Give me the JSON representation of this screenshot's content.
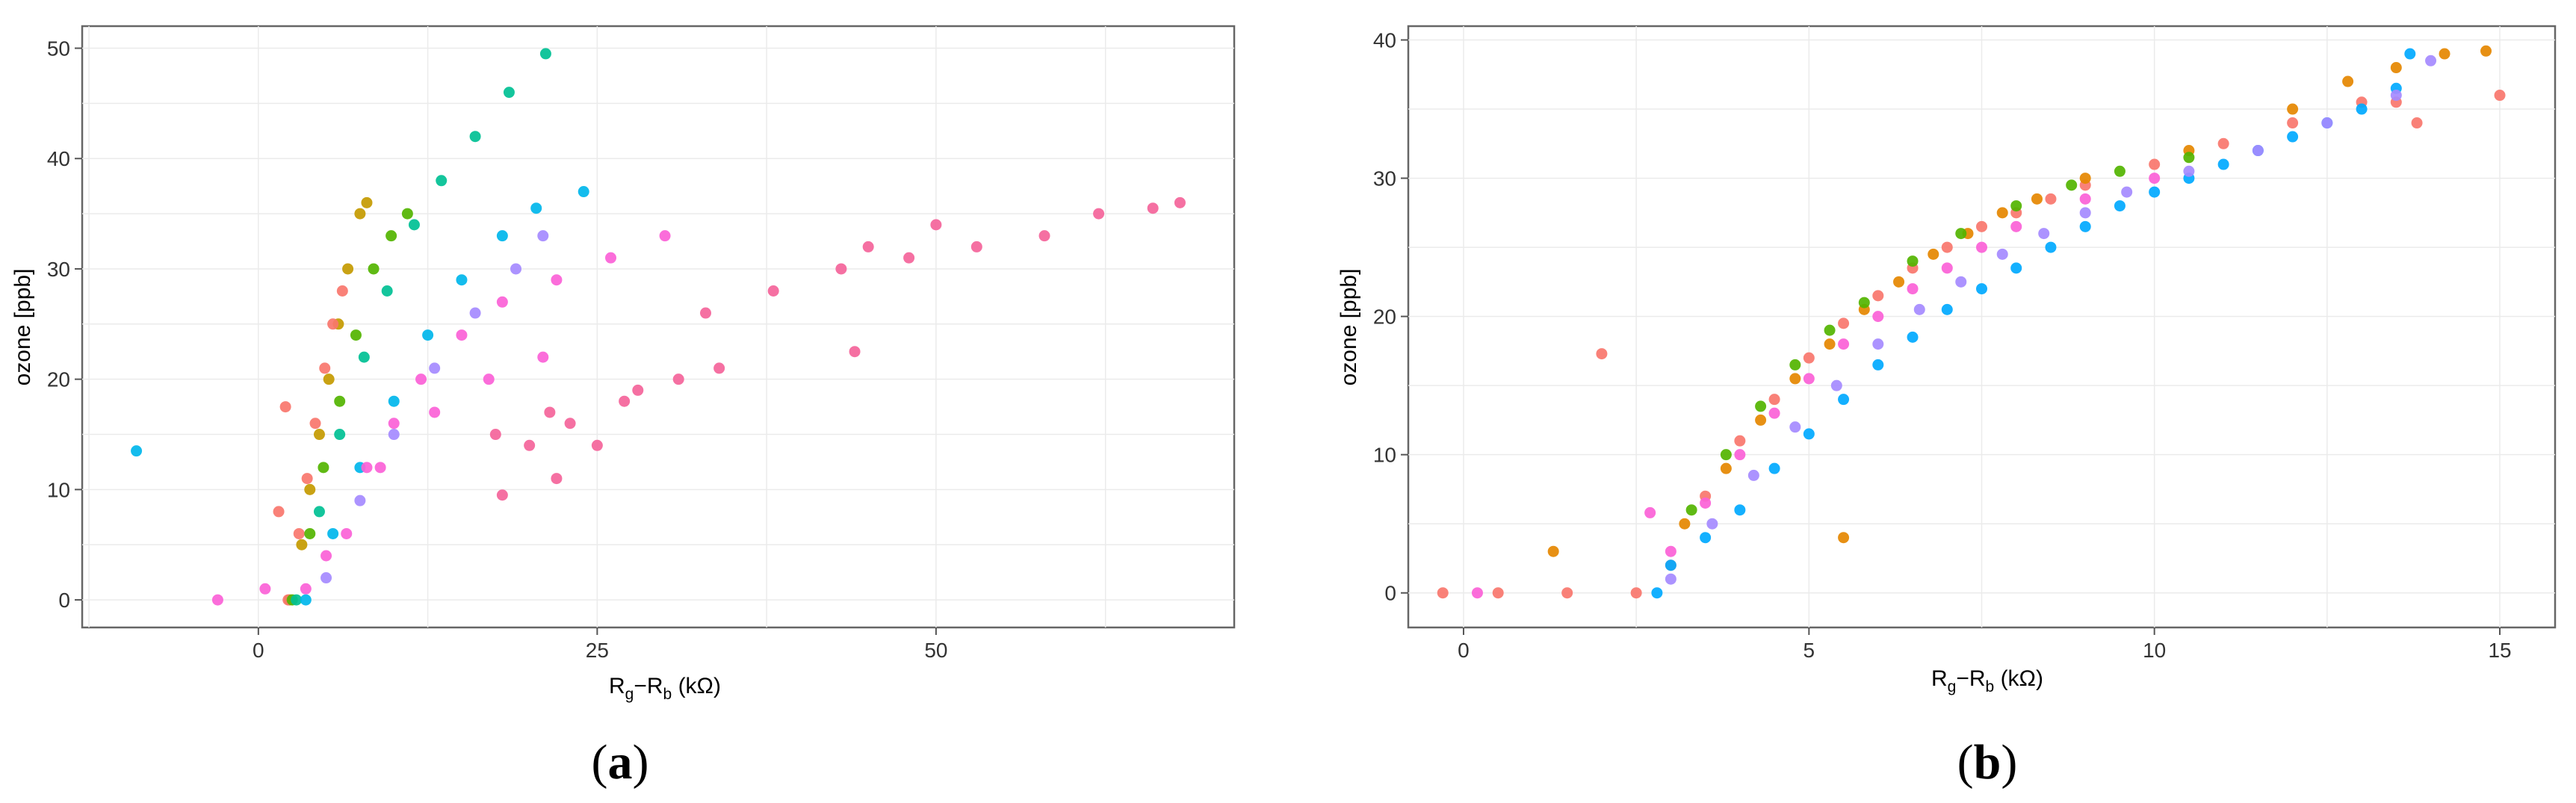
{
  "figure": {
    "panels": [
      {
        "caption_open": "(",
        "caption_letter": "a",
        "caption_close": ")"
      },
      {
        "caption_open": "(",
        "caption_letter": "b",
        "caption_close": ")"
      }
    ]
  },
  "chart_data": [
    {
      "type": "scatter",
      "title": "",
      "xlabel_main": "R",
      "xlabel_sub1": "g",
      "xlabel_mid": "−R",
      "xlabel_sub2": "b",
      "xlabel_unit": " (kΩ)",
      "ylabel": "ozone [ppb]",
      "xlim": [
        -13,
        72
      ],
      "ylim": [
        -2.5,
        52
      ],
      "xticks": [
        0,
        25,
        50
      ],
      "xtick_labels": [
        "0",
        "25",
        "50"
      ],
      "yticks": [
        0,
        10,
        20,
        30,
        40,
        50
      ],
      "ytick_labels": [
        "0",
        "10",
        "20",
        "30",
        "40",
        "50"
      ],
      "grid": true,
      "legend": "none",
      "series": [
        {
          "color": "#c49a00",
          "points": [
            [
              2.3,
              0
            ],
            [
              3.2,
              5
            ],
            [
              3.8,
              10
            ],
            [
              4.5,
              15
            ],
            [
              5.2,
              20
            ],
            [
              5.9,
              25
            ],
            [
              6.6,
              30
            ],
            [
              7.5,
              35
            ],
            [
              8.0,
              36
            ]
          ]
        },
        {
          "color": "#f8766d",
          "points": [
            [
              2.2,
              0
            ],
            [
              3.0,
              6
            ],
            [
              3.6,
              11
            ],
            [
              4.2,
              16
            ],
            [
              4.9,
              21
            ],
            [
              5.5,
              25
            ],
            [
              6.2,
              28
            ],
            [
              1.5,
              8
            ],
            [
              2.0,
              17.5
            ]
          ]
        },
        {
          "color": "#53b400",
          "points": [
            [
              2.5,
              0
            ],
            [
              3.8,
              6
            ],
            [
              4.8,
              12
            ],
            [
              6.0,
              18
            ],
            [
              7.2,
              24
            ],
            [
              8.5,
              30
            ],
            [
              9.8,
              33
            ],
            [
              11.0,
              35
            ]
          ]
        },
        {
          "color": "#00c094",
          "points": [
            [
              2.8,
              0
            ],
            [
              4.5,
              8
            ],
            [
              6.0,
              15
            ],
            [
              7.8,
              22
            ],
            [
              9.5,
              28
            ],
            [
              11.5,
              34
            ],
            [
              13.5,
              38
            ],
            [
              16.0,
              42
            ],
            [
              18.5,
              46
            ],
            [
              21.2,
              49.5
            ]
          ]
        },
        {
          "color": "#00b6eb",
          "points": [
            [
              3.5,
              0
            ],
            [
              5.5,
              6
            ],
            [
              7.5,
              12
            ],
            [
              10.0,
              18
            ],
            [
              12.5,
              24
            ],
            [
              15.0,
              29
            ],
            [
              18.0,
              33
            ],
            [
              20.5,
              35.5
            ],
            [
              24.0,
              37
            ],
            [
              -9.0,
              13.5
            ]
          ]
        },
        {
          "color": "#a58aff",
          "points": [
            [
              5.0,
              2
            ],
            [
              7.5,
              9
            ],
            [
              10.0,
              15
            ],
            [
              13.0,
              21
            ],
            [
              16.0,
              26
            ],
            [
              19.0,
              30
            ],
            [
              21.0,
              33
            ]
          ]
        },
        {
          "color": "#fb61d7",
          "points": [
            [
              -3.0,
              0
            ],
            [
              0.5,
              1
            ],
            [
              3.5,
              1
            ],
            [
              5.0,
              4
            ],
            [
              6.5,
              6
            ],
            [
              8.0,
              12
            ],
            [
              10.0,
              16
            ],
            [
              12.0,
              20
            ],
            [
              15.0,
              24
            ],
            [
              18.0,
              27
            ],
            [
              22.0,
              29
            ],
            [
              26.0,
              31
            ],
            [
              30.0,
              33
            ],
            [
              9.0,
              12
            ],
            [
              13.0,
              17
            ],
            [
              17.0,
              20
            ],
            [
              21.0,
              22
            ]
          ]
        },
        {
          "color": "#f4649a",
          "points": [
            [
              18.0,
              9.5
            ],
            [
              20.0,
              14
            ],
            [
              23.0,
              16
            ],
            [
              27.0,
              18
            ],
            [
              31.0,
              20
            ],
            [
              34.0,
              21
            ],
            [
              17.5,
              15
            ],
            [
              21.5,
              17
            ],
            [
              28.0,
              19
            ],
            [
              22.0,
              11
            ],
            [
              25.0,
              14
            ],
            [
              33.0,
              26
            ],
            [
              38.0,
              28
            ],
            [
              43.0,
              30
            ],
            [
              48.0,
              31
            ],
            [
              53.0,
              32
            ],
            [
              58.0,
              33
            ],
            [
              62.0,
              35
            ],
            [
              66.0,
              35.5
            ],
            [
              68.0,
              36
            ],
            [
              44.0,
              22.5
            ],
            [
              45.0,
              32
            ],
            [
              50.0,
              34
            ]
          ]
        }
      ]
    },
    {
      "type": "scatter",
      "title": "",
      "xlabel_main": "R",
      "xlabel_sub1": "g",
      "xlabel_mid": "−R",
      "xlabel_sub2": "b",
      "xlabel_unit": " (kΩ)",
      "ylabel": "ozone [ppb]",
      "xlim": [
        -0.8,
        15.8
      ],
      "ylim": [
        -2.5,
        41
      ],
      "xticks": [
        0,
        5,
        10,
        15
      ],
      "xtick_labels": [
        "0",
        "5",
        "10",
        "15"
      ],
      "yticks": [
        0,
        10,
        20,
        30,
        40
      ],
      "ytick_labels": [
        "0",
        "10",
        "20",
        "30",
        "40"
      ],
      "grid": true,
      "legend": "none",
      "series": [
        {
          "color": "#f8766d",
          "points": [
            [
              -0.3,
              0
            ],
            [
              0.5,
              0
            ],
            [
              1.5,
              0
            ],
            [
              2.5,
              0
            ],
            [
              3.0,
              2
            ],
            [
              3.5,
              7
            ],
            [
              4.0,
              11
            ],
            [
              4.5,
              14
            ],
            [
              5.0,
              17
            ],
            [
              5.5,
              19.5
            ],
            [
              6.0,
              21.5
            ],
            [
              6.5,
              23.5
            ],
            [
              7.0,
              25
            ],
            [
              7.5,
              26.5
            ],
            [
              8.0,
              27.5
            ],
            [
              8.5,
              28.5
            ],
            [
              9.0,
              29.5
            ],
            [
              10.0,
              31
            ],
            [
              11.0,
              32.5
            ],
            [
              12.0,
              34
            ],
            [
              13.0,
              35.5
            ],
            [
              13.8,
              34
            ],
            [
              15.0,
              36
            ],
            [
              2.0,
              17.3
            ],
            [
              13.5,
              35.5
            ]
          ]
        },
        {
          "color": "#e58700",
          "points": [
            [
              1.3,
              3
            ],
            [
              3.2,
              5
            ],
            [
              3.8,
              9
            ],
            [
              4.3,
              12.5
            ],
            [
              4.8,
              15.5
            ],
            [
              5.3,
              18
            ],
            [
              5.8,
              20.5
            ],
            [
              6.3,
              22.5
            ],
            [
              6.8,
              24.5
            ],
            [
              7.3,
              26
            ],
            [
              7.8,
              27.5
            ],
            [
              8.3,
              28.5
            ],
            [
              9.0,
              30
            ],
            [
              10.5,
              32
            ],
            [
              12.0,
              35
            ],
            [
              12.8,
              37
            ],
            [
              13.5,
              38
            ],
            [
              14.2,
              39
            ],
            [
              14.8,
              39.2
            ],
            [
              5.5,
              4
            ]
          ]
        },
        {
          "color": "#53b400",
          "points": [
            [
              3.3,
              6
            ],
            [
              3.8,
              10
            ],
            [
              4.3,
              13.5
            ],
            [
              4.8,
              16.5
            ],
            [
              5.3,
              19
            ],
            [
              5.8,
              21
            ],
            [
              6.5,
              24
            ],
            [
              7.2,
              26
            ],
            [
              8.0,
              28
            ],
            [
              8.8,
              29.5
            ],
            [
              9.5,
              30.5
            ],
            [
              10.5,
              31.5
            ]
          ]
        },
        {
          "color": "#00a9ff",
          "points": [
            [
              2.8,
              0
            ],
            [
              3.0,
              2
            ],
            [
              3.5,
              4
            ],
            [
              4.0,
              6
            ],
            [
              4.5,
              9
            ],
            [
              5.0,
              11.5
            ],
            [
              5.5,
              14
            ],
            [
              6.0,
              16.5
            ],
            [
              6.5,
              18.5
            ],
            [
              7.0,
              20.5
            ],
            [
              7.5,
              22
            ],
            [
              8.0,
              23.5
            ],
            [
              8.5,
              25
            ],
            [
              9.0,
              26.5
            ],
            [
              9.5,
              28
            ],
            [
              10.0,
              29
            ],
            [
              10.5,
              30
            ],
            [
              11.0,
              31
            ],
            [
              11.5,
              32
            ],
            [
              12.0,
              33
            ],
            [
              12.5,
              34
            ],
            [
              13.0,
              35
            ],
            [
              13.5,
              36.5
            ],
            [
              13.7,
              39
            ]
          ]
        },
        {
          "color": "#a58aff",
          "points": [
            [
              3.0,
              1
            ],
            [
              3.6,
              5
            ],
            [
              4.2,
              8.5
            ],
            [
              4.8,
              12
            ],
            [
              5.4,
              15
            ],
            [
              6.0,
              18
            ],
            [
              6.6,
              20.5
            ],
            [
              7.2,
              22.5
            ],
            [
              7.8,
              24.5
            ],
            [
              8.4,
              26
            ],
            [
              9.0,
              27.5
            ],
            [
              9.6,
              29
            ],
            [
              10.5,
              30.5
            ],
            [
              11.5,
              32
            ],
            [
              12.5,
              34
            ],
            [
              13.5,
              36
            ],
            [
              14.0,
              38.5
            ]
          ]
        },
        {
          "color": "#fb61d7",
          "points": [
            [
              0.2,
              0
            ],
            [
              2.7,
              5.8
            ],
            [
              3.0,
              3
            ],
            [
              3.5,
              6.5
            ],
            [
              4.0,
              10
            ],
            [
              4.5,
              13
            ],
            [
              5.0,
              15.5
            ],
            [
              5.5,
              18
            ],
            [
              6.0,
              20
            ],
            [
              6.5,
              22
            ],
            [
              7.0,
              23.5
            ],
            [
              7.5,
              25
            ],
            [
              8.0,
              26.5
            ],
            [
              9.0,
              28.5
            ],
            [
              10.0,
              30
            ]
          ]
        }
      ]
    }
  ]
}
